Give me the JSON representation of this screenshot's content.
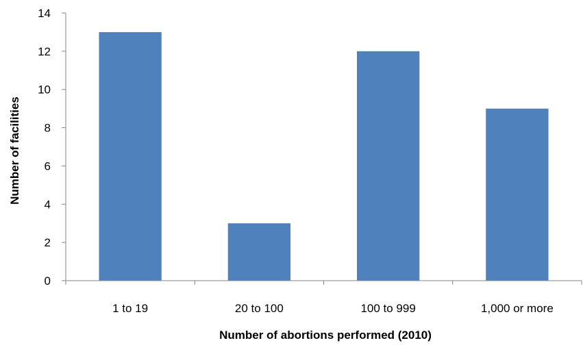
{
  "chart_data": {
    "type": "bar",
    "title": "",
    "xlabel": "Number of abortions performed (2010)",
    "ylabel": "Number of facilities",
    "categories": [
      "1 to 19",
      "20 to 100",
      "100 to 999",
      "1,000 or more"
    ],
    "values": [
      13,
      3,
      12,
      9
    ],
    "ylim": [
      0,
      14
    ],
    "yticks": [
      0,
      2,
      4,
      6,
      8,
      10,
      12,
      14
    ],
    "grid": false,
    "legend": "none",
    "bar_color": "#4F81BD",
    "axis_color": "#868686"
  }
}
